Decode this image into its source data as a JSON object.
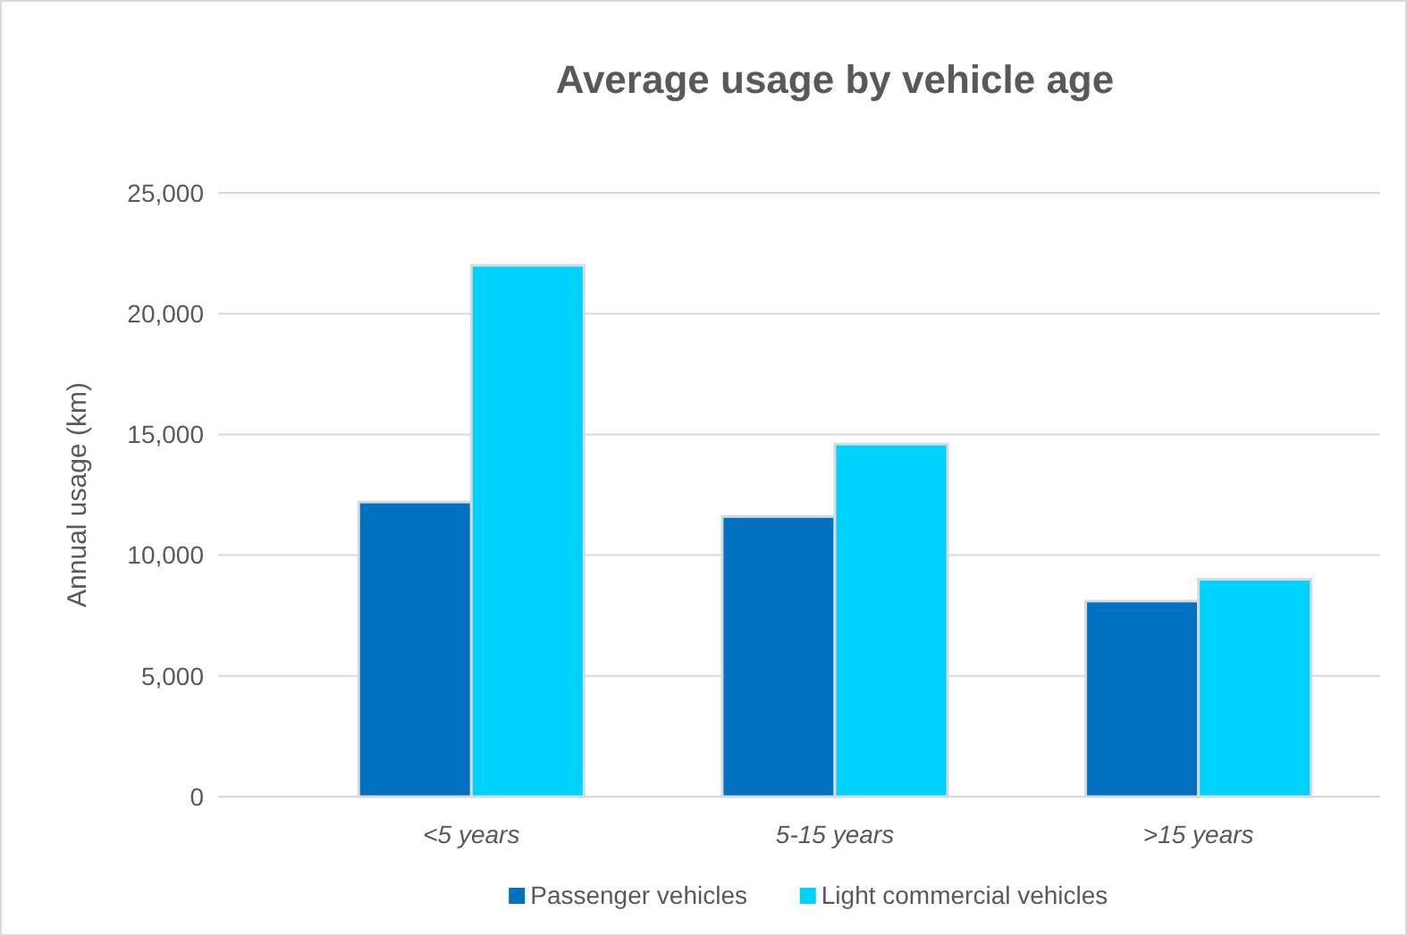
{
  "chart_data": {
    "type": "bar",
    "title": "Average usage by vehicle age",
    "ylabel": "Annual usage (km)",
    "categories": [
      "<5 years",
      "5-15 years",
      ">15 years"
    ],
    "series": [
      {
        "name": "Passenger vehicles",
        "color": "#0070c0",
        "values": [
          12200,
          11600,
          8100
        ]
      },
      {
        "name": "Light commercial vehicles",
        "color": "#00d2ff",
        "values": [
          22000,
          14600,
          9000
        ]
      }
    ],
    "ylim": [
      0,
      25000
    ],
    "yticks": [
      {
        "value": 0,
        "label": "0"
      },
      {
        "value": 5000,
        "label": "5,000"
      },
      {
        "value": 10000,
        "label": "10,000"
      },
      {
        "value": 15000,
        "label": "15,000"
      },
      {
        "value": 20000,
        "label": "20,000"
      },
      {
        "value": 25000,
        "label": "25,000"
      }
    ],
    "grid": "y",
    "legend": "bottom"
  }
}
